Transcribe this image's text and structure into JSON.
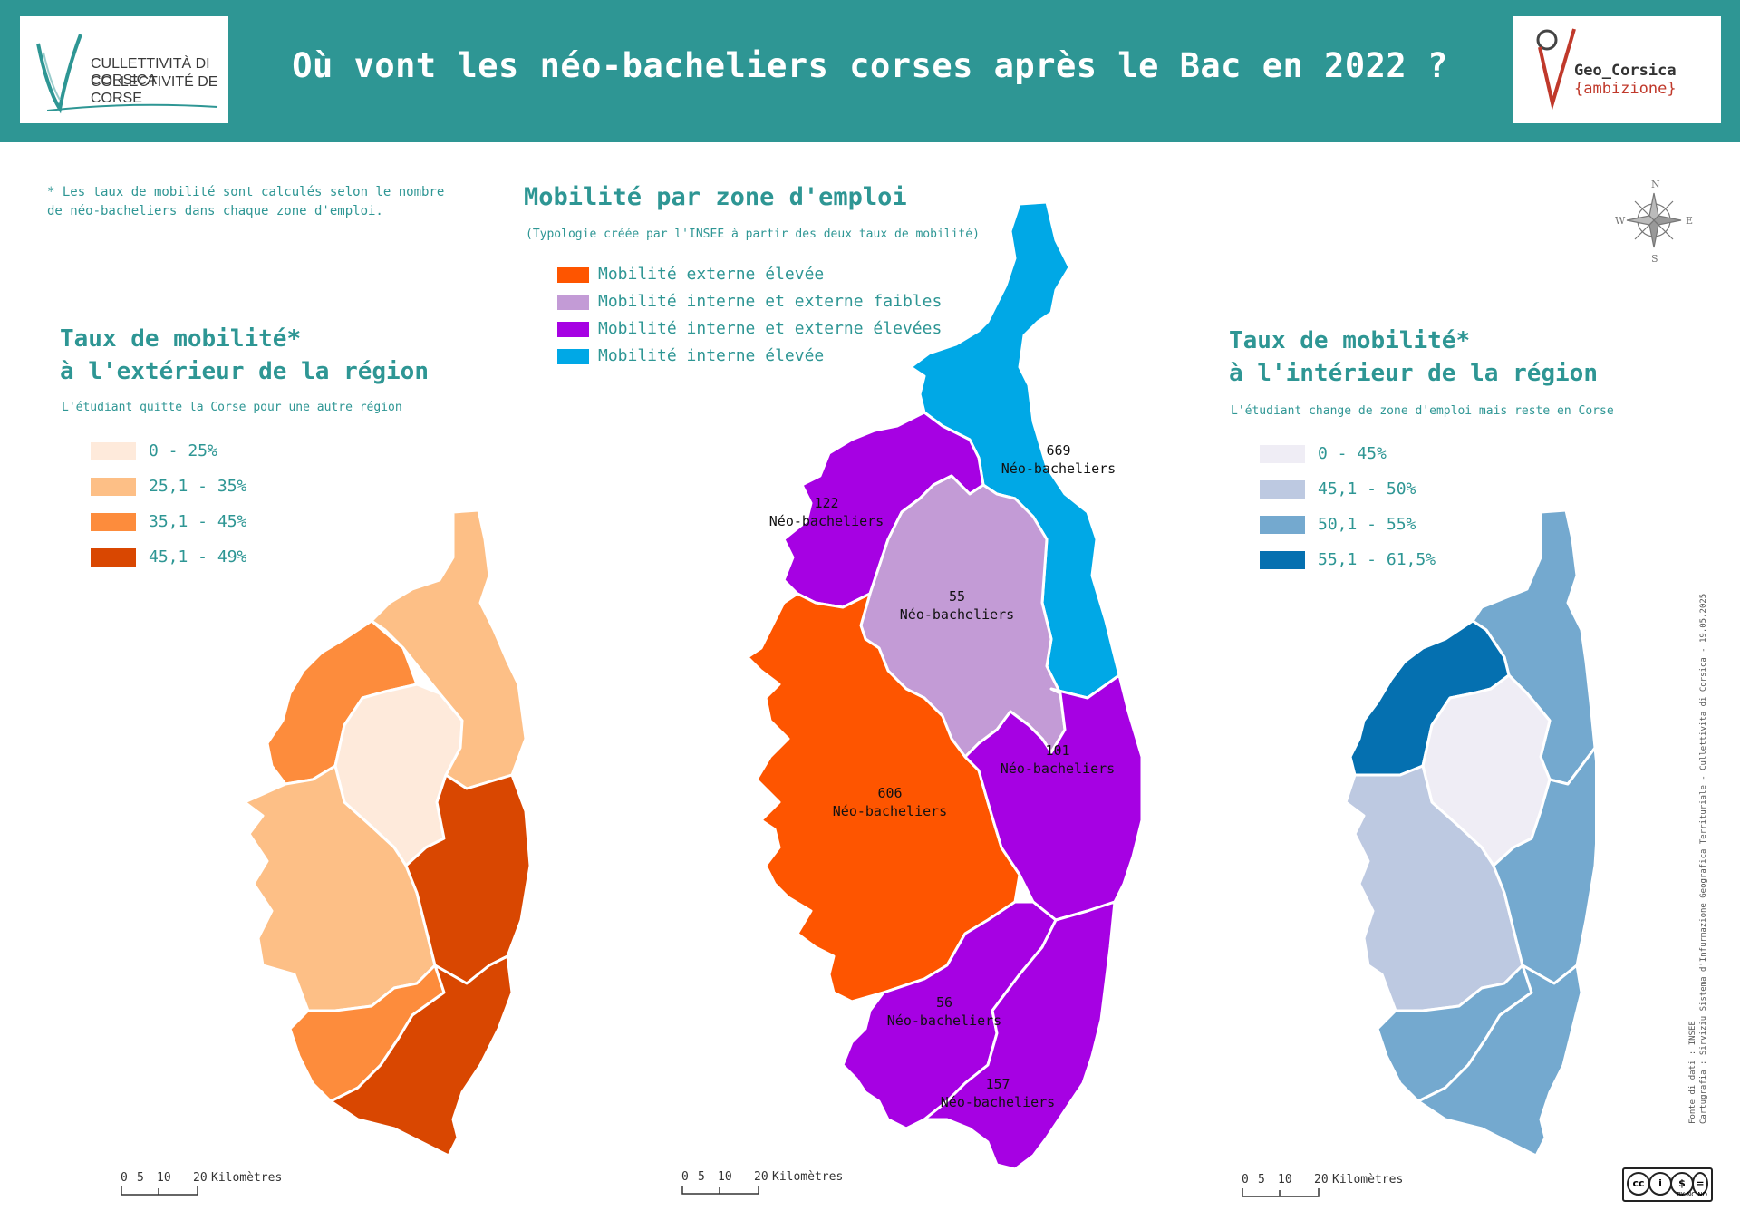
{
  "header": {
    "title": "Où vont les néo-bacheliers corses après le Bac en 2022 ?",
    "logo_left_top": "CULLETTIVITÀ DI CORSICA",
    "logo_left_bottom": "COLLECTIVITÉ DE CORSE",
    "logo_right_name": "Geo_Corsica",
    "logo_right_tag": "{ambizione}",
    "bg_color": "#2e9694"
  },
  "note": "* Les taux de mobilité sont calculés selon le nombre de néo-bacheliers dans chaque zone d'emploi.",
  "left_map": {
    "title_line1": "Taux de mobilité*",
    "title_line2": "à l'extérieur de la région",
    "subtitle": "L'étudiant quitte la Corse pour une autre région",
    "legend": [
      {
        "label": "0 - 25%",
        "color": "#feeadb"
      },
      {
        "label": "25,1 - 35%",
        "color": "#fdbf86"
      },
      {
        "label": "35,1 - 45%",
        "color": "#fd8c3c"
      },
      {
        "label": "45,1 - 49%",
        "color": "#d94701"
      }
    ]
  },
  "center_map": {
    "title": "Mobilité par zone d'emploi",
    "subtitle": "(Typologie créée par l'INSEE à partir des deux taux de mobilité)",
    "legend": [
      {
        "label": "Mobilité externe élevée",
        "color": "#fe5500"
      },
      {
        "label": "Mobilité interne et externe faibles",
        "color": "#c39bd6"
      },
      {
        "label": "Mobilité interne et externe élevées",
        "color": "#a601e3"
      },
      {
        "label": "Mobilité interne élevée",
        "color": "#00a8e6"
      }
    ],
    "zones": [
      {
        "count": "669",
        "unit": "Néo-bacheliers"
      },
      {
        "count": "122",
        "unit": "Néo-bacheliers"
      },
      {
        "count": "55",
        "unit": "Néo-bacheliers"
      },
      {
        "count": "606",
        "unit": "Néo-bacheliers"
      },
      {
        "count": "101",
        "unit": "Néo-bacheliers"
      },
      {
        "count": "56",
        "unit": "Néo-bacheliers"
      },
      {
        "count": "157",
        "unit": "Néo-bacheliers"
      }
    ]
  },
  "right_map": {
    "title_line1": "Taux de mobilité*",
    "title_line2": "à l'intérieur de la région",
    "subtitle": "L'étudiant change de zone d'emploi mais reste en Corse",
    "legend": [
      {
        "label": "0 - 45%",
        "color": "#efedf5"
      },
      {
        "label": "45,1 - 50%",
        "color": "#bdc9e1"
      },
      {
        "label": "50,1 - 55%",
        "color": "#74a9cf"
      },
      {
        "label": "55,1 - 61,5%",
        "color": "#0570b0"
      }
    ]
  },
  "compass": {
    "n": "N",
    "s": "S",
    "e": "E",
    "w": "W"
  },
  "scalebar": {
    "labels": [
      "0",
      "5",
      "10",
      "20"
    ],
    "unit": "Kilomètres"
  },
  "source": {
    "line1": "Fonte di dati : INSEE",
    "line2": "Cartugrafia : Sirviziu Sistema d'Infurmazione Geografica Territuriale - Cullettivita di Corsica - 19.05.2025"
  },
  "license": {
    "text": "BY   NC   ND"
  }
}
